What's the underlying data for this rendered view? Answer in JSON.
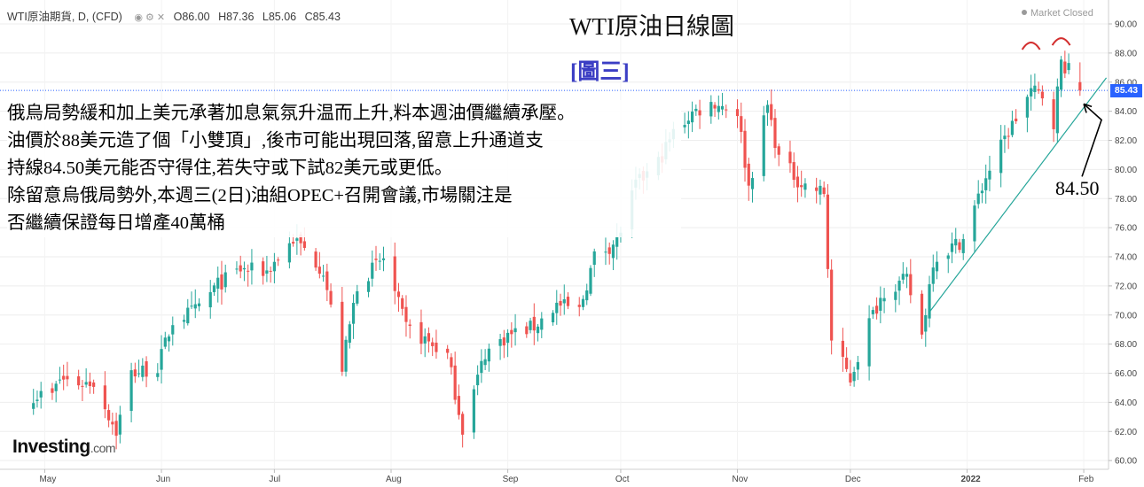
{
  "header": {
    "symbol": "WTI原油期貨, D, (CFD)",
    "open": "O86.00",
    "high": "H87.36",
    "low": "L85.06",
    "close": "C85.43",
    "status": "Market Closed"
  },
  "title": "WTI原油日線圖",
  "subtitle": "[圖三]",
  "annotation_lines": [
    "俄烏局勢緩和加上美元承著加息氣氛升温而上升,料本週油價繼續承壓。",
    "油價於88美元造了個「小雙頂」,後市可能出現回落,留意上升通道支",
    "持線84.50美元能否守得住,若失守或下試82美元或更低。",
    "除留意烏俄局勢外,本週三(2日)油組OPEC+召開會議,市場關注是",
    "否繼續保證每日增產40萬桶"
  ],
  "support_label": "84.50",
  "price_tag": "85.43",
  "logo": {
    "main": "Investing",
    "suffix": ".com"
  },
  "colors": {
    "up": "#26a69a",
    "down": "#ef5350",
    "price_line": "#2962ff",
    "trendline": "#26a69a",
    "double_top": "#d32f2f"
  },
  "chart_data": {
    "type": "candlestick",
    "title": "WTI原油日線圖",
    "y_ticks": [
      60,
      62,
      64,
      66,
      68,
      70,
      72,
      74,
      76,
      78,
      80,
      82,
      84,
      86,
      88,
      90
    ],
    "ylim": [
      59.4,
      91.4
    ],
    "x_tick_labels": [
      "May",
      "Jun",
      "Jul",
      "Aug",
      "Sep",
      "Oct",
      "Nov",
      "Dec",
      "2022",
      "Feb"
    ],
    "last_price": 85.43,
    "support_level": 84.5,
    "close_series": [
      {
        "date": "2021-05-03",
        "close": 64.5
      },
      {
        "date": "2021-05-05",
        "close": 65.6
      },
      {
        "date": "2021-05-11",
        "close": 65.3
      },
      {
        "date": "2021-05-14",
        "close": 65.4
      },
      {
        "date": "2021-05-20",
        "close": 62.0
      },
      {
        "date": "2021-05-24",
        "close": 66.0
      },
      {
        "date": "2021-05-31",
        "close": 66.4
      },
      {
        "date": "2021-06-04",
        "close": 69.6
      },
      {
        "date": "2021-06-10",
        "close": 70.3
      },
      {
        "date": "2021-06-16",
        "close": 72.1
      },
      {
        "date": "2021-06-22",
        "close": 73.1
      },
      {
        "date": "2021-06-29",
        "close": 73.0
      },
      {
        "date": "2021-07-06",
        "close": 75.2
      },
      {
        "date": "2021-07-09",
        "close": 74.5
      },
      {
        "date": "2021-07-14",
        "close": 73.1
      },
      {
        "date": "2021-07-19",
        "close": 66.4
      },
      {
        "date": "2021-07-23",
        "close": 72.1
      },
      {
        "date": "2021-07-30",
        "close": 73.9
      },
      {
        "date": "2021-08-05",
        "close": 69.1
      },
      {
        "date": "2021-08-10",
        "close": 68.3
      },
      {
        "date": "2021-08-16",
        "close": 67.2
      },
      {
        "date": "2021-08-20",
        "close": 62.2
      },
      {
        "date": "2021-08-26",
        "close": 67.4
      },
      {
        "date": "2021-09-01",
        "close": 68.6
      },
      {
        "date": "2021-09-08",
        "close": 69.2
      },
      {
        "date": "2021-09-14",
        "close": 70.7
      },
      {
        "date": "2021-09-20",
        "close": 70.3
      },
      {
        "date": "2021-09-24",
        "close": 74.0
      },
      {
        "date": "2021-09-30",
        "close": 75.1
      },
      {
        "date": "2021-10-05",
        "close": 78.9
      },
      {
        "date": "2021-10-11",
        "close": 80.5
      },
      {
        "date": "2021-10-15",
        "close": 82.5
      },
      {
        "date": "2021-10-20",
        "close": 83.9
      },
      {
        "date": "2021-10-26",
        "close": 84.6
      },
      {
        "date": "2021-11-01",
        "close": 84.0
      },
      {
        "date": "2021-11-04",
        "close": 78.8
      },
      {
        "date": "2021-11-09",
        "close": 84.4
      },
      {
        "date": "2021-11-12",
        "close": 80.8
      },
      {
        "date": "2021-11-18",
        "close": 79.0
      },
      {
        "date": "2021-11-24",
        "close": 78.4
      },
      {
        "date": "2021-11-26",
        "close": 68.2
      },
      {
        "date": "2021-12-01",
        "close": 65.6
      },
      {
        "date": "2021-12-06",
        "close": 69.5
      },
      {
        "date": "2021-12-10",
        "close": 71.7
      },
      {
        "date": "2021-12-16",
        "close": 72.4
      },
      {
        "date": "2021-12-20",
        "close": 68.6
      },
      {
        "date": "2021-12-23",
        "close": 73.8
      },
      {
        "date": "2021-12-31",
        "close": 75.2
      },
      {
        "date": "2022-01-06",
        "close": 79.5
      },
      {
        "date": "2022-01-12",
        "close": 82.6
      },
      {
        "date": "2022-01-18",
        "close": 85.4
      },
      {
        "date": "2022-01-21",
        "close": 85.1
      },
      {
        "date": "2022-01-24",
        "close": 83.3
      },
      {
        "date": "2022-01-26",
        "close": 87.4
      },
      {
        "date": "2022-01-28",
        "close": 86.8
      },
      {
        "date": "2022-01-31",
        "close": 85.4
      }
    ]
  }
}
